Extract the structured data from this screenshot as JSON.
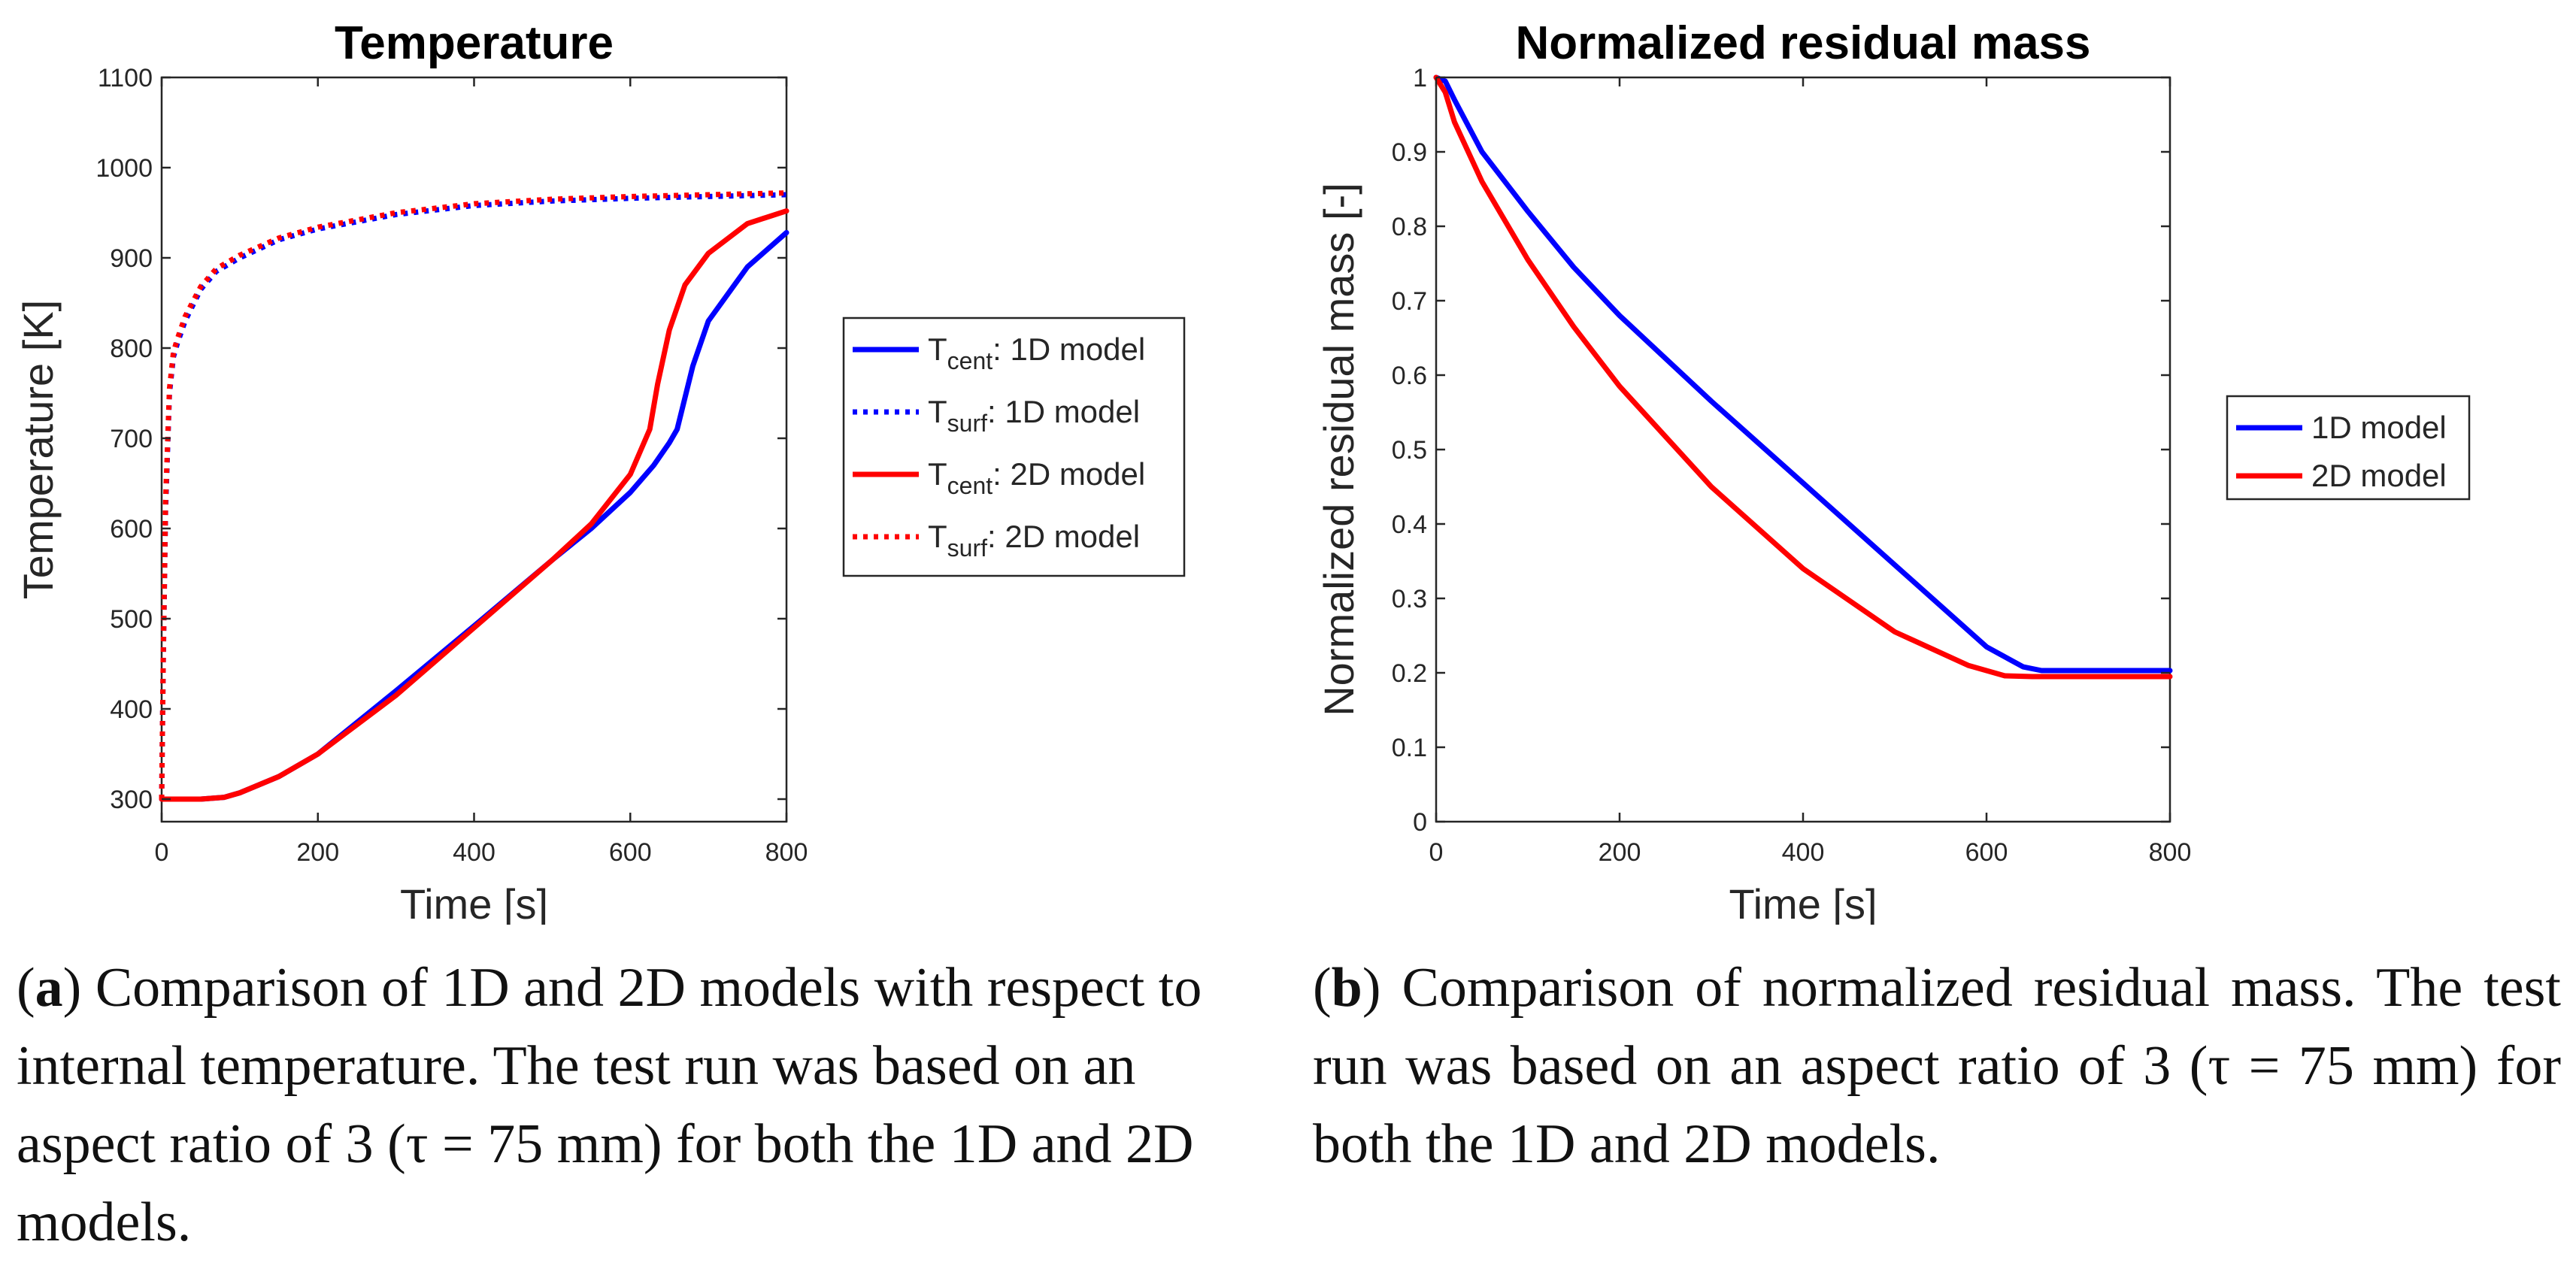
{
  "chart_data": [
    {
      "type": "line",
      "title": "Temperature",
      "xlabel": "Time [s]",
      "ylabel": "Temperature [K]",
      "xlim": [
        0,
        800
      ],
      "ylim": [
        275,
        1100
      ],
      "xticks": [
        "0",
        "200",
        "400",
        "600",
        "800"
      ],
      "yticks": [
        "300",
        "400",
        "500",
        "600",
        "700",
        "800",
        "900",
        "1000",
        "1100"
      ],
      "grid": false,
      "legend_position": "outside-right",
      "series": [
        {
          "key": "tcent-1d",
          "style": "solid",
          "color": "#0000ff",
          "legend": {
            "sym": "T",
            "sub": "cent",
            "rest": ": 1D model"
          },
          "x": [
            0,
            50,
            80,
            100,
            150,
            200,
            300,
            400,
            500,
            550,
            600,
            630,
            650,
            660,
            680,
            700,
            750,
            800
          ],
          "y": [
            300,
            300,
            302,
            307,
            325,
            350,
            420,
            492,
            565,
            600,
            640,
            670,
            695,
            710,
            780,
            830,
            890,
            928
          ]
        },
        {
          "key": "tsurf-1d",
          "style": "dotted",
          "color": "#0000ff",
          "legend": {
            "sym": "T",
            "sub": "surf",
            "rest": ": 1D model"
          },
          "x": [
            0,
            2,
            5,
            10,
            15,
            20,
            30,
            50,
            70,
            100,
            150,
            200,
            300,
            400,
            500,
            600,
            700,
            800
          ],
          "y": [
            300,
            450,
            620,
            750,
            790,
            805,
            830,
            865,
            885,
            900,
            920,
            932,
            948,
            958,
            963,
            966,
            968,
            970
          ]
        },
        {
          "key": "tcent-2d",
          "style": "solid",
          "color": "#ff0000",
          "legend": {
            "sym": "T",
            "sub": "cent",
            "rest": ": 2D model"
          },
          "x": [
            0,
            50,
            80,
            100,
            150,
            200,
            300,
            400,
            500,
            550,
            600,
            625,
            635,
            650,
            670,
            700,
            750,
            800
          ],
          "y": [
            300,
            300,
            302,
            307,
            325,
            350,
            415,
            490,
            565,
            605,
            660,
            710,
            760,
            820,
            870,
            905,
            938,
            952
          ]
        },
        {
          "key": "tsurf-2d",
          "style": "dotted",
          "color": "#ff0000",
          "legend": {
            "sym": "T",
            "sub": "surf",
            "rest": ": 2D model"
          },
          "x": [
            0,
            2,
            5,
            10,
            15,
            20,
            30,
            50,
            70,
            100,
            150,
            200,
            300,
            400,
            500,
            600,
            700,
            800
          ],
          "y": [
            300,
            455,
            630,
            755,
            795,
            810,
            835,
            868,
            888,
            903,
            922,
            934,
            950,
            960,
            965,
            968,
            970,
            972
          ]
        }
      ]
    },
    {
      "type": "line",
      "title": "Normalized residual mass",
      "xlabel": "Time [s]",
      "ylabel": "Normalized residual mass [-]",
      "xlim": [
        0,
        800
      ],
      "ylim": [
        0,
        1
      ],
      "xticks": [
        "0",
        "200",
        "400",
        "600",
        "800"
      ],
      "yticks": [
        "0",
        "0.1",
        "0.2",
        "0.3",
        "0.4",
        "0.5",
        "0.6",
        "0.7",
        "0.8",
        "0.9",
        "1"
      ],
      "grid": false,
      "legend_position": "outside-right",
      "series": [
        {
          "key": "mass-1d",
          "name": "1D model",
          "color": "#0000ff",
          "x": [
            0,
            10,
            20,
            50,
            100,
            150,
            200,
            300,
            400,
            500,
            600,
            640,
            660,
            700,
            800
          ],
          "y": [
            1.0,
            0.995,
            0.97,
            0.9,
            0.82,
            0.745,
            0.68,
            0.565,
            0.455,
            0.345,
            0.235,
            0.208,
            0.203,
            0.203,
            0.203
          ]
        },
        {
          "key": "mass-2d",
          "name": "2D model",
          "color": "#ff0000",
          "x": [
            0,
            10,
            20,
            50,
            100,
            150,
            200,
            300,
            400,
            500,
            580,
            620,
            650,
            700,
            800
          ],
          "y": [
            1.0,
            0.98,
            0.94,
            0.86,
            0.755,
            0.665,
            0.585,
            0.45,
            0.34,
            0.255,
            0.21,
            0.196,
            0.195,
            0.195,
            0.195
          ]
        }
      ]
    }
  ],
  "captions": [
    {
      "tag": "a",
      "text": " Comparison of 1D and 2D models with respect to internal temperature. The test run was based on an aspect ratio of 3 (τ = 75 mm) for both the 1D and 2D models."
    },
    {
      "tag": "b",
      "text": " Comparison of normalized residual mass. The test run was based on an aspect ratio of 3 (τ = 75 mm) for both the 1D and 2D models."
    }
  ]
}
